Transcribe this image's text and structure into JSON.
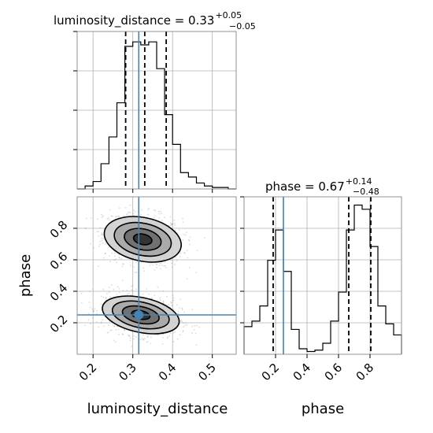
{
  "chart_data": {
    "type": "corner",
    "parameters": [
      "luminosity_distance",
      "phase"
    ],
    "truths": {
      "luminosity_distance": 0.315,
      "phase": 0.25
    },
    "marginals": [
      {
        "parameter": "luminosity_distance",
        "title": "luminosity_distance = 0.33",
        "median": "0.33",
        "plus": "+0.05",
        "minus": "−0.05",
        "quantiles": [
          0.282,
          0.33,
          0.384
        ],
        "xlim": [
          0.16,
          0.56
        ],
        "bin_edges": [
          0.16,
          0.18,
          0.2,
          0.22,
          0.24,
          0.26,
          0.28,
          0.3,
          0.32,
          0.34,
          0.36,
          0.38,
          0.4,
          0.42,
          0.44,
          0.46,
          0.48,
          0.5,
          0.52,
          0.54,
          0.56
        ],
        "counts": [
          0,
          2,
          5,
          17,
          35,
          58,
          96,
          99,
          97,
          99,
          81,
          50,
          30,
          11,
          8,
          4,
          2,
          1,
          1,
          0
        ],
        "ymax": 106
      },
      {
        "parameter": "phase",
        "title": "phase = 0.67",
        "median": "0.67",
        "plus": "+0.14",
        "minus": "−0.48",
        "quantiles": [
          0.185,
          0.665,
          0.805
        ],
        "xlim": [
          0.0,
          1.0
        ],
        "bin_edges": [
          0.0,
          0.05,
          0.1,
          0.15,
          0.2,
          0.25,
          0.3,
          0.35,
          0.4,
          0.45,
          0.5,
          0.55,
          0.6,
          0.65,
          0.7,
          0.75,
          0.8,
          0.85,
          0.9,
          0.95,
          1.0
        ],
        "counts": [
          20,
          24,
          35,
          68,
          90,
          60,
          18,
          4,
          2,
          3,
          8,
          24,
          45,
          90,
          108,
          105,
          78,
          35,
          22,
          14
        ],
        "ymax": 114
      }
    ],
    "joint": {
      "x": "luminosity_distance",
      "y": "phase",
      "xlim": [
        0.16,
        0.56
      ],
      "ylim": [
        0.0,
        1.0
      ],
      "modes": [
        {
          "x": 0.325,
          "y": 0.73,
          "sx": 0.045,
          "sy": 0.075
        },
        {
          "x": 0.32,
          "y": 0.25,
          "sx": 0.045,
          "sy": 0.06
        }
      ]
    },
    "ticks": {
      "luminosity_distance": [
        "0.2",
        "0.3",
        "0.4",
        "0.5"
      ],
      "phase": [
        "0.2",
        "0.4",
        "0.6",
        "0.8"
      ]
    },
    "axis_labels": {
      "bottom_left": "luminosity_distance",
      "bottom_right": "phase",
      "left": "phase"
    },
    "colors": {
      "truth": "#4682b4",
      "hist": "#000000",
      "points": "#aaaaaa"
    }
  }
}
